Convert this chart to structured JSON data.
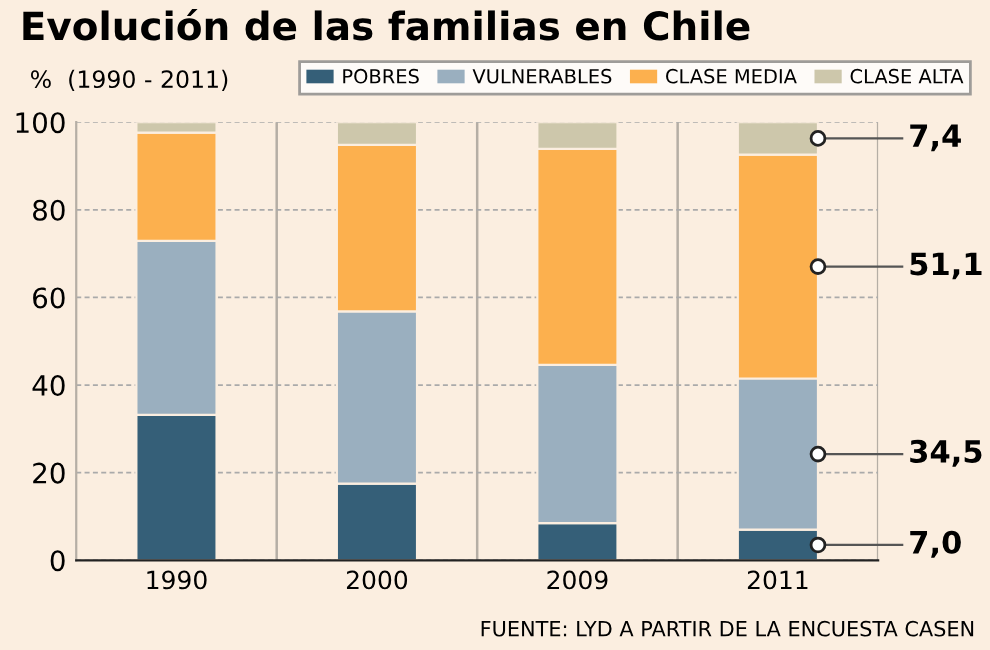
{
  "chart_data": {
    "type": "bar",
    "stacked": true,
    "title": "Evolución de las familias en Chile",
    "ylabel": "%  (1990 - 2011)",
    "categories": [
      "1990",
      "2000",
      "2009",
      "2011"
    ],
    "series": [
      {
        "name": "POBRES",
        "color": "#355f78",
        "values": [
          33.2,
          17.5,
          8.5,
          7.0
        ],
        "value_labels": [
          null,
          null,
          null,
          "7,0"
        ]
      },
      {
        "name": "VULNERABLES",
        "color": "#9aafbf",
        "values": [
          39.7,
          39.3,
          36.1,
          34.5
        ],
        "value_labels": [
          null,
          null,
          null,
          "34,5"
        ]
      },
      {
        "name": "CLASE MEDIA",
        "color": "#fcb04e",
        "values": [
          24.7,
          38.0,
          49.3,
          51.1
        ],
        "value_labels": [
          null,
          null,
          null,
          "51,1"
        ]
      },
      {
        "name": "CLASE ALTA",
        "color": "#cdc7ab",
        "values": [
          2.4,
          5.2,
          6.1,
          7.4
        ],
        "value_labels": [
          null,
          null,
          null,
          "7,4"
        ]
      }
    ],
    "ylim": [
      0,
      100
    ],
    "yticks": [
      0,
      20,
      40,
      60,
      80,
      100
    ],
    "grid": "y",
    "legend": "top right",
    "annotations": [
      "FUENTE: LYD A PARTIR DE LA ENCUESTA CASEN"
    ]
  }
}
